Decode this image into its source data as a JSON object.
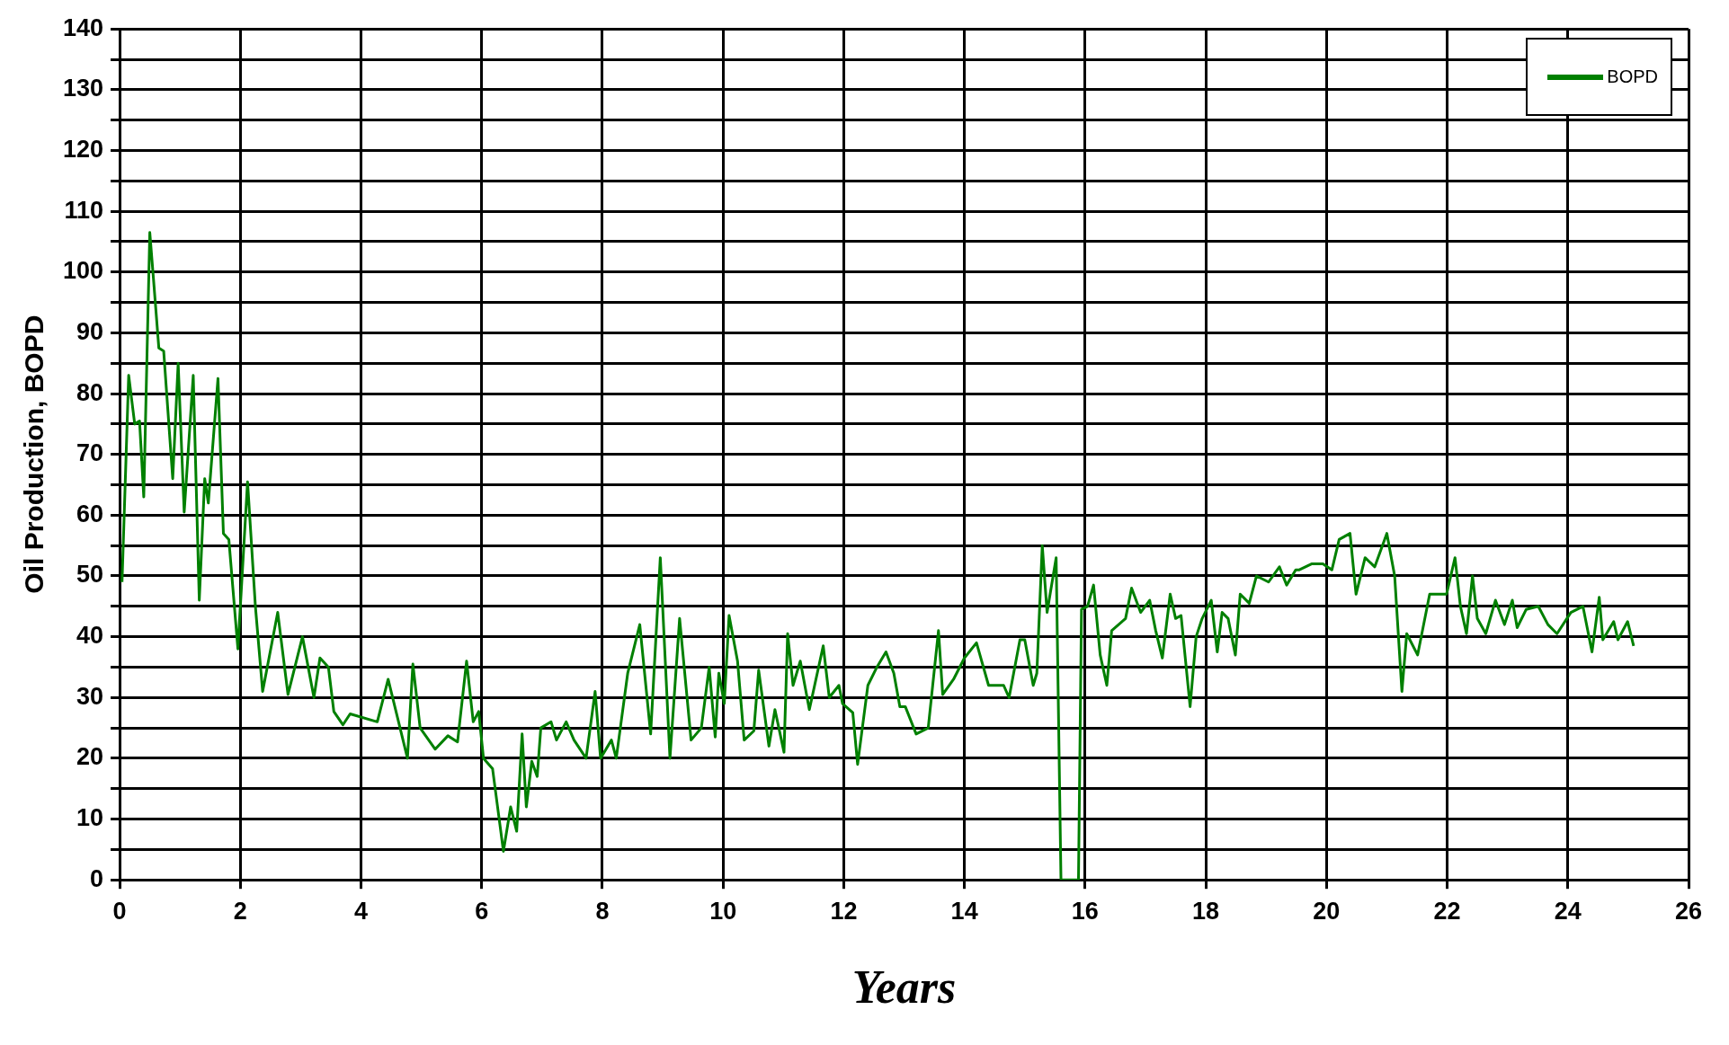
{
  "chart_data": {
    "type": "line",
    "xlabel": "Years",
    "ylabel": "Oil Production, BOPD",
    "xlim": [
      0,
      26
    ],
    "xticks": [
      0,
      2,
      4,
      6,
      8,
      10,
      12,
      14,
      16,
      18,
      20,
      22,
      24,
      26
    ],
    "ylim": [
      0,
      140
    ],
    "yticks": [
      0,
      {
        "value": 5,
        "label": null
      },
      10,
      {
        "value": 15,
        "label": null
      },
      20,
      {
        "value": 25,
        "label": null
      },
      30,
      {
        "value": 35,
        "label": null
      },
      40,
      {
        "value": 45,
        "label": null
      },
      50,
      {
        "value": 55,
        "label": null
      },
      60,
      {
        "value": 65,
        "label": null
      },
      70,
      {
        "value": 75,
        "label": null
      },
      80,
      {
        "value": 85,
        "label": null
      },
      90,
      {
        "value": 95,
        "label": null
      },
      100,
      {
        "value": 105,
        "label": null
      },
      110,
      {
        "value": 115,
        "label": null
      },
      120,
      {
        "value": 125,
        "label": null
      },
      130,
      {
        "value": 135,
        "label": null
      },
      140
    ],
    "grid": true,
    "legend": "top right",
    "marker": "none",
    "line_style": "solid",
    "series": [
      {
        "name": "BOPD",
        "color": "#008000",
        "x": [
          0.04,
          0.15,
          0.25,
          0.33,
          0.4,
          0.5,
          0.56,
          0.65,
          0.73,
          0.88,
          0.97,
          1.07,
          1.22,
          1.32,
          1.41,
          1.47,
          1.63,
          1.72,
          1.81,
          1.96,
          2.12,
          2.25,
          2.37,
          2.62,
          2.79,
          3.03,
          3.22,
          3.32,
          3.46,
          3.55,
          3.7,
          3.82,
          4.27,
          4.45,
          4.77,
          4.86,
          4.98,
          5.23,
          5.44,
          5.6,
          5.75,
          5.86,
          5.95,
          6.03,
          6.18,
          6.36,
          6.48,
          6.58,
          6.67,
          6.74,
          6.83,
          6.92,
          6.98,
          7.15,
          7.24,
          7.4,
          7.53,
          7.73,
          7.88,
          7.97,
          8.15,
          8.23,
          8.42,
          8.62,
          8.8,
          8.96,
          9.12,
          9.28,
          9.47,
          9.64,
          9.77,
          9.87,
          9.93,
          10.02,
          10.1,
          10.24,
          10.35,
          10.51,
          10.59,
          10.76,
          10.86,
          11.01,
          11.07,
          11.16,
          11.28,
          11.43,
          11.66,
          11.76,
          11.92,
          11.98,
          12.15,
          12.23,
          12.4,
          12.55,
          12.7,
          12.83,
          12.93,
          13.02,
          13.2,
          13.4,
          13.57,
          13.64,
          13.82,
          14.0,
          14.2,
          14.4,
          14.65,
          14.74,
          14.92,
          15.0,
          15.14,
          15.2,
          15.29,
          15.37,
          15.52,
          15.6,
          15.89,
          15.94,
          16.04,
          16.14,
          16.25,
          16.36,
          16.44,
          16.67,
          16.77,
          16.92,
          17.07,
          17.17,
          17.28,
          17.41,
          17.5,
          17.59,
          17.74,
          17.84,
          17.94,
          18.09,
          18.19,
          18.27,
          18.37,
          18.49,
          18.57,
          18.72,
          18.84,
          19.04,
          19.22,
          19.34,
          19.49,
          19.55,
          19.76,
          19.94,
          20.09,
          20.21,
          20.39,
          20.49,
          20.64,
          20.8,
          21.0,
          21.13,
          21.25,
          21.33,
          21.51,
          21.71,
          21.84,
          21.99,
          22.13,
          22.22,
          22.32,
          22.42,
          22.5,
          22.64,
          22.8,
          22.95,
          23.08,
          23.16,
          23.31,
          23.51,
          23.67,
          23.82,
          24.05,
          24.25,
          24.4,
          24.52,
          24.58,
          24.76,
          24.83,
          24.99,
          25.09
        ],
        "values": [
          49,
          83,
          75,
          75.5,
          63,
          106.5,
          99,
          87.5,
          87,
          66,
          85,
          60.5,
          83,
          46,
          66,
          62,
          82.5,
          57,
          56,
          38,
          65.5,
          45,
          31,
          44,
          30.5,
          40,
          30,
          36.5,
          35,
          27.7,
          25.5,
          27.3,
          26,
          33,
          20,
          35.5,
          25,
          21.5,
          23.7,
          22.7,
          36,
          26,
          27.7,
          20,
          18.3,
          4.7,
          12,
          8,
          24,
          12,
          19.5,
          17,
          25,
          26,
          23,
          26,
          23,
          20,
          31,
          20,
          23,
          20,
          34,
          42,
          24,
          53,
          20,
          43,
          23,
          25,
          35,
          23.5,
          34,
          29,
          43.5,
          36,
          23,
          24.5,
          34.5,
          22,
          28,
          21,
          40.5,
          32,
          36,
          28,
          38.5,
          30,
          32,
          29,
          27.5,
          19,
          32,
          35,
          37.5,
          34,
          28.5,
          28.5,
          24,
          25,
          41,
          30.5,
          33,
          36.5,
          39,
          32,
          32,
          30,
          39.5,
          39.5,
          32,
          34,
          55,
          44,
          53,
          0,
          0,
          44.5,
          45,
          48.5,
          37,
          32,
          41,
          43,
          48,
          44,
          46,
          41,
          36.5,
          47,
          43,
          43.5,
          28.5,
          40,
          43,
          46,
          37.5,
          44,
          43,
          37,
          47,
          45.5,
          50,
          49,
          51.5,
          48.5,
          51,
          51,
          52,
          52,
          51,
          56,
          57,
          47,
          53,
          51.5,
          57,
          50,
          31,
          40.5,
          37,
          47,
          47,
          47,
          53,
          45,
          40.5,
          50,
          43,
          40.5,
          46,
          42,
          46,
          41.5,
          44.5,
          45,
          42,
          40.5,
          44,
          45,
          37.5,
          46.5,
          39.5,
          42.5,
          39.5,
          42.5,
          38.5
        ]
      }
    ]
  }
}
